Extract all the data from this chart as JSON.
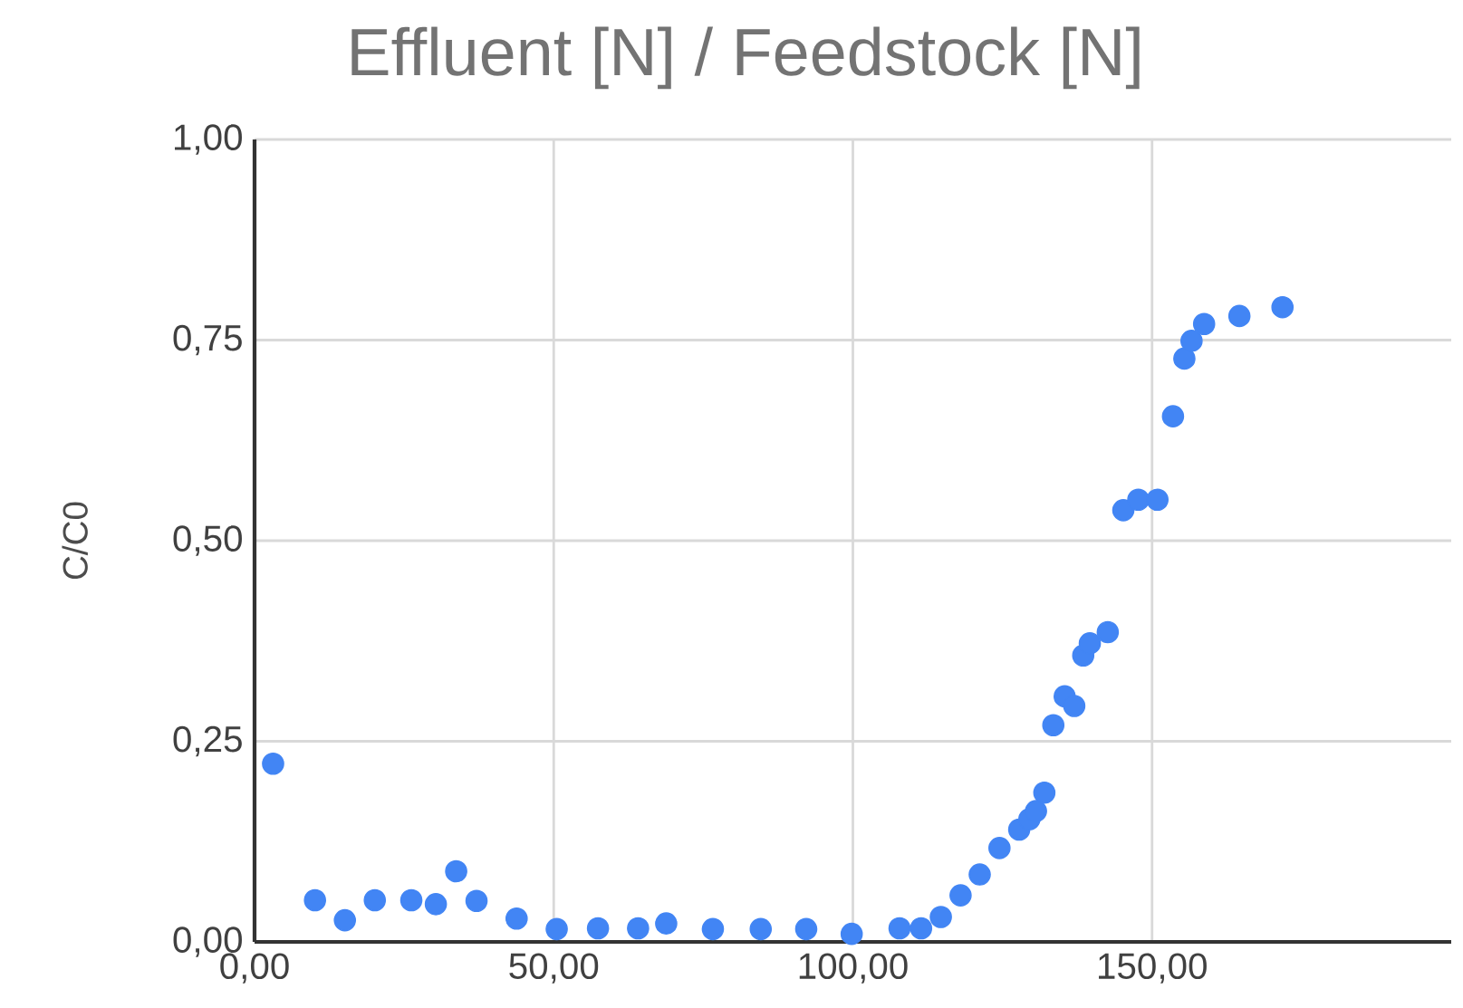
{
  "chart_data": {
    "type": "scatter",
    "title": "Effluent  [N] / Feedstock [N]",
    "ylabel": "C/C0",
    "xlim": [
      0,
      200
    ],
    "ylim": [
      0,
      1
    ],
    "xticks": [
      {
        "value": 0,
        "label": "0,00"
      },
      {
        "value": 50,
        "label": "50,00"
      },
      {
        "value": 100,
        "label": "100,00"
      },
      {
        "value": 150,
        "label": "150,00"
      }
    ],
    "yticks": [
      {
        "value": 0,
        "label": "0,00"
      },
      {
        "value": 0.25,
        "label": "0,25"
      },
      {
        "value": 0.5,
        "label": "0,50"
      },
      {
        "value": 0.75,
        "label": "0,75"
      },
      {
        "value": 1,
        "label": "1,00"
      }
    ],
    "grid": true,
    "series": [
      {
        "color": "#4285f4",
        "x": [
          3.1,
          10.1,
          15.1,
          20.1,
          26.2,
          30.3,
          33.7,
          37.1,
          43.8,
          50.5,
          57.4,
          64.1,
          68.8,
          76.6,
          84.6,
          92.2,
          99.8,
          107.8,
          111.4,
          114.7,
          118.0,
          121.2,
          124.5,
          127.8,
          129.5,
          130.6,
          132.0,
          133.5,
          135.4,
          137.0,
          138.5,
          139.6,
          142.6,
          145.2,
          147.7,
          150.9,
          153.5,
          155.4,
          156.6,
          158.7,
          164.6,
          171.8
        ],
        "values": [
          0.222,
          0.052,
          0.027,
          0.052,
          0.052,
          0.047,
          0.088,
          0.051,
          0.029,
          0.016,
          0.017,
          0.017,
          0.023,
          0.016,
          0.016,
          0.016,
          0.01,
          0.017,
          0.017,
          0.031,
          0.058,
          0.084,
          0.117,
          0.14,
          0.153,
          0.163,
          0.186,
          0.27,
          0.306,
          0.294,
          0.357,
          0.372,
          0.386,
          0.538,
          0.551,
          0.551,
          0.655,
          0.727,
          0.749,
          0.77,
          0.78,
          0.791
        ]
      }
    ]
  }
}
